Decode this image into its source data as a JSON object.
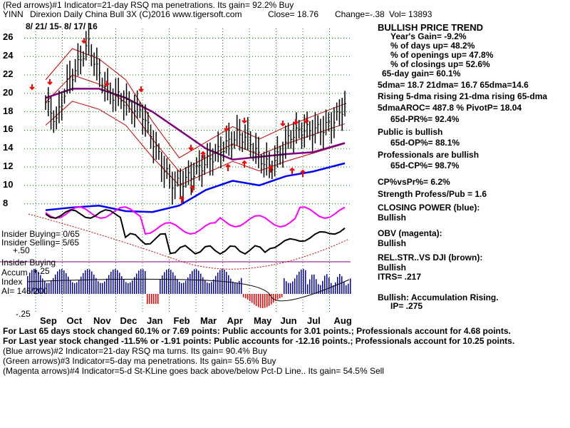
{
  "header": {
    "line1": "(Red arrows)#1 Indicator=21-day RSQ ma penetrations. Its gain= 92.2% Buy",
    "ticker": "YINN",
    "name_line": "Direxion Daily China Bull 3X  (C)2016 www.tigersoft.com",
    "close": "Close=  18.76",
    "change": "Change=-.38",
    "vol": "Vol= 13893",
    "date_range": "8/ 21/ 15- 8/ 17/ 16"
  },
  "left_labels": {
    "insider_buying": "Insider Buying= 0/65",
    "insider_selling": "Insider Selling= 5/65",
    "plus50": "+.50",
    "insider_buying2": "Insider Buying",
    "accum": "Accum",
    "plus25": "+.25",
    "index": "Index",
    "ai": "AI= 146/200",
    "minus25": "-.25"
  },
  "right_panel": {
    "title": "BULLISH PRICE TREND",
    "years_gain": "Year's Gain= -9.2%",
    "days_up": "% of days up= 48.2%",
    "openings_up": "% of openings up= 47.8%",
    "closings_up": "% of closings up= 52.6%",
    "gain65": "65-day gain= 60.1%",
    "dma": "5dma= 18.7 21dma= 16.7 65dma=14.6",
    "rising": "Rising 5-dma rising 21-dma rising 65-dma",
    "aroc": "5dmaAROC= 487.8 %  PivotP= 18.04",
    "pr": "65d-PR%= 92.4%",
    "public_bullish": "Public is bullish",
    "op": "65d-OP%= 88.1%",
    "prof_bullish": "Professionals are bullish",
    "cp": "65d-CP%= 98.7%",
    "cpvspr": "CP%vsPr%=  6.2%",
    "strength": "Strength Profess/Pub = 1.6",
    "closing_power": "CLOSING POWER (blue):",
    "cp_bullish": "Bullish",
    "obv": "OBV (magenta):",
    "obv_bullish": "Bullish",
    "relstr": "REL.STR..VS DJI (brown):",
    "relstr_bullish": "Bullish",
    "itrs": "ITRS= .217",
    "accum": "Bullish: Accumulation Rising.",
    "ip": "IP=  .275"
  },
  "footer": {
    "line1": "For Last 65 days stock changed  60.1% or  7.69 points:  Public accounts for  3.01 points.;  Professionals account for  4.68 points.",
    "line2": "For Last year stock changed -11.5% or -1.91 points:  Public accounts for -12.16 points.;  Professionals account for  10.25 points.",
    "line3": "(Blue arrows)#2 Indicator=21-day RSQ ma turns. Its gain= 90.4% Buy",
    "line4": "(Green arrows)#3 Indicator=5-day ma penetrations. Its gain= 55.6% Buy",
    "line5": "(Magenta arrows)#4 Indicator=5-d St-KLine goes back above/below Pct-D Line.. Its gain= 54.5% Sell"
  },
  "colors": {
    "grid": "#008000",
    "price_bar": "#000000",
    "ma_red": "#cc0000",
    "ma65": "#800080",
    "closing_power": "#0000ff",
    "obv": "#ff00ff",
    "red_arrow": "#ff0000",
    "accum_blue": "#0000aa",
    "accum_red": "#ff0000"
  },
  "chart_data": {
    "type": "line",
    "title": "YINN Direxion Daily China Bull 3X",
    "ylim": [
      7,
      27
    ],
    "y_ticks": [
      "26",
      "24",
      "22",
      "20",
      "18",
      "16",
      "14",
      "12",
      "10",
      "8"
    ],
    "y_tick_values": [
      26,
      24,
      22,
      20,
      18,
      16,
      14,
      12,
      10,
      8
    ],
    "x_labels": [
      "Sep",
      "Oct",
      "Nov",
      "Dec",
      "Jan",
      "Feb",
      "Mar",
      "Apr",
      "May",
      "Jun",
      "Jul",
      "Aug"
    ],
    "months_index": [
      0,
      1,
      2,
      3,
      4,
      5,
      6,
      7,
      8,
      9,
      10,
      11
    ],
    "series": [
      {
        "name": "Price close",
        "x": [
          0,
          0.4,
          0.8,
          1.2,
          1.6,
          2.0,
          2.4,
          2.8,
          3.2,
          3.6,
          4.0,
          4.4,
          4.8,
          5.2,
          5.6,
          6.0,
          6.4,
          6.8,
          7.2,
          7.6,
          8.0,
          8.4,
          8.8,
          9.2,
          9.6,
          10.0,
          10.4,
          10.8,
          11.2
        ],
        "values": [
          19,
          17,
          21,
          23,
          25.5,
          22,
          20,
          19.5,
          18.5,
          18,
          15,
          12,
          10,
          10.5,
          11.5,
          12.5,
          13.5,
          14.5,
          15.5,
          15,
          13,
          12,
          13.5,
          15.5,
          16,
          16,
          16.2,
          17,
          18.76
        ]
      },
      {
        "name": "65-dma",
        "x": [
          0,
          1,
          2,
          3,
          4,
          5,
          6,
          7,
          8,
          9,
          10,
          11.2
        ],
        "values": [
          19.5,
          20.5,
          20.5,
          19.5,
          18,
          16,
          14,
          12.8,
          13.1,
          13.4,
          13.6,
          14.6
        ]
      },
      {
        "name": "21-dma",
        "x": [
          0,
          1,
          2,
          3,
          4,
          5,
          6,
          7,
          8,
          9,
          10,
          11.2
        ],
        "values": [
          19,
          22,
          21,
          19,
          15,
          11.5,
          13,
          14.5,
          13.3,
          14.5,
          15.5,
          16.7
        ]
      },
      {
        "name": "Closing Power",
        "x": [
          0,
          1,
          2,
          3,
          4,
          5,
          6,
          7,
          8,
          9,
          10,
          11.2
        ],
        "values": [
          7.3,
          7.6,
          7.8,
          7.2,
          7.1,
          7.8,
          9.5,
          10.5,
          10,
          11,
          11.5,
          12.4
        ]
      }
    ]
  }
}
